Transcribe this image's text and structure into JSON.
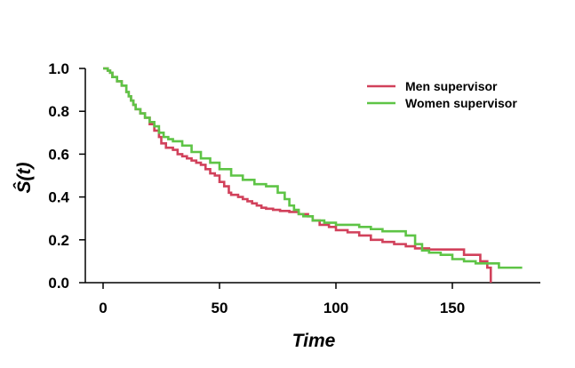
{
  "chart_data": {
    "type": "line",
    "step": true,
    "xlabel": "Time",
    "ylabel": "Ŝ(t)",
    "xlim": [
      0,
      180
    ],
    "ylim": [
      0,
      1
    ],
    "xticks": [
      0,
      50,
      100,
      150
    ],
    "yticks": [
      0.0,
      0.2,
      0.4,
      0.6,
      0.8,
      1.0
    ],
    "legend_position": "top-right",
    "series": [
      {
        "name": "Men supervisor",
        "color": "#d1415b",
        "x": [
          0,
          2,
          3,
          4,
          6,
          8,
          10,
          11,
          12,
          13,
          14,
          16,
          18,
          20,
          22,
          24,
          25,
          27,
          30,
          32,
          34,
          36,
          38,
          40,
          42,
          44,
          46,
          48,
          50,
          52,
          54,
          55,
          58,
          60,
          62,
          64,
          66,
          68,
          70,
          73,
          76,
          80,
          84,
          88,
          90,
          93,
          97,
          100,
          105,
          110,
          115,
          120,
          125,
          130,
          134,
          140,
          150,
          155,
          162,
          165,
          166.5
        ],
        "y": [
          1.0,
          0.99,
          0.98,
          0.96,
          0.94,
          0.92,
          0.89,
          0.87,
          0.85,
          0.83,
          0.81,
          0.79,
          0.77,
          0.74,
          0.71,
          0.68,
          0.65,
          0.63,
          0.62,
          0.6,
          0.59,
          0.58,
          0.57,
          0.56,
          0.55,
          0.53,
          0.51,
          0.5,
          0.47,
          0.45,
          0.42,
          0.41,
          0.4,
          0.39,
          0.38,
          0.37,
          0.36,
          0.35,
          0.345,
          0.34,
          0.335,
          0.33,
          0.32,
          0.31,
          0.29,
          0.27,
          0.26,
          0.245,
          0.235,
          0.22,
          0.2,
          0.19,
          0.18,
          0.17,
          0.16,
          0.155,
          0.155,
          0.13,
          0.1,
          0.07,
          0.0
        ]
      },
      {
        "name": "Women supervisor",
        "color": "#5ec446",
        "x": [
          0,
          2,
          3,
          4,
          6,
          8,
          10,
          11,
          12,
          13,
          14,
          16,
          18,
          20,
          22,
          24,
          26,
          28,
          30,
          34,
          38,
          42,
          46,
          50,
          55,
          60,
          65,
          70,
          75,
          78,
          80,
          82,
          84,
          86,
          90,
          95,
          100,
          105,
          110,
          115,
          120,
          125,
          130,
          134,
          137,
          140,
          145,
          150,
          155,
          160,
          170,
          180
        ],
        "y": [
          1.0,
          0.99,
          0.98,
          0.96,
          0.94,
          0.92,
          0.89,
          0.87,
          0.85,
          0.83,
          0.81,
          0.79,
          0.77,
          0.75,
          0.73,
          0.7,
          0.68,
          0.67,
          0.66,
          0.64,
          0.61,
          0.58,
          0.56,
          0.53,
          0.5,
          0.48,
          0.46,
          0.45,
          0.42,
          0.39,
          0.36,
          0.34,
          0.32,
          0.31,
          0.29,
          0.28,
          0.27,
          0.27,
          0.26,
          0.25,
          0.24,
          0.24,
          0.22,
          0.18,
          0.15,
          0.14,
          0.13,
          0.11,
          0.1,
          0.09,
          0.07,
          0.07
        ]
      }
    ]
  }
}
